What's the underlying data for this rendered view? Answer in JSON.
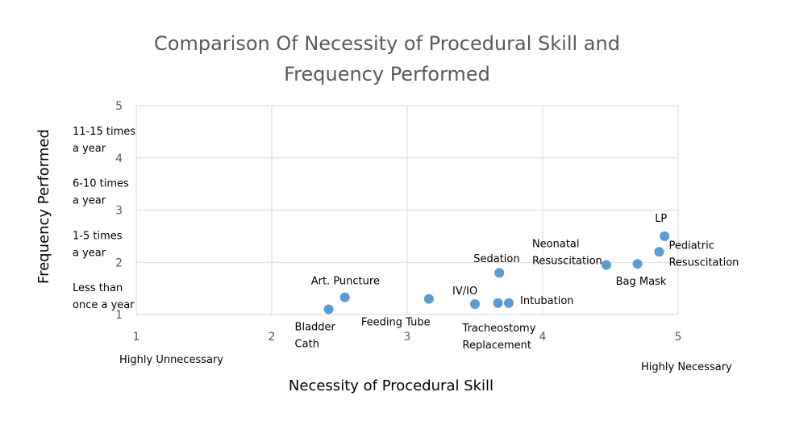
{
  "chart_data": {
    "type": "scatter",
    "title": [
      "Comparison Of Necessity of Procedural Skill and",
      "Frequency Performed"
    ],
    "xlabel": "Necessity of Procedural Skill",
    "ylabel": "Frequency Performed",
    "xlim": [
      1,
      5
    ],
    "ylim": [
      1,
      5
    ],
    "x_ticks": [
      1,
      2,
      3,
      4,
      5
    ],
    "y_ticks": [
      1,
      2,
      3,
      4,
      5
    ],
    "x_annotations": [
      {
        "text": "Highly Unnecessary",
        "at": 1
      },
      {
        "text": "Highly Necessary",
        "at": 5
      }
    ],
    "y_annotations": [
      {
        "lines": [
          "Less than",
          "once a year"
        ],
        "at": 1
      },
      {
        "lines": [
          "1-5 times",
          "a year"
        ],
        "at": 2
      },
      {
        "lines": [
          "6-10 times",
          "a year"
        ],
        "at": 3
      },
      {
        "lines": [
          "11-15 times",
          "a year"
        ],
        "at": 4
      }
    ],
    "grid": true,
    "color": "#5B9BD5",
    "points": [
      {
        "label": [
          "Bladder",
          "Cath"
        ],
        "x": 2.42,
        "y": 1.1
      },
      {
        "label": [
          "Art. Puncture"
        ],
        "x": 2.54,
        "y": 1.33
      },
      {
        "label": [
          "Feeding Tube"
        ],
        "x": 3.16,
        "y": 1.3
      },
      {
        "label": [
          "IV/IO"
        ],
        "x": 3.5,
        "y": 1.2
      },
      {
        "label": [
          "Tracheostomy",
          "Replacement"
        ],
        "x": 3.67,
        "y": 1.22
      },
      {
        "label": [
          "Intubation"
        ],
        "x": 3.75,
        "y": 1.22
      },
      {
        "label": [
          "Sedation"
        ],
        "x": 3.68,
        "y": 1.8
      },
      {
        "label": [
          "Neonatal",
          "Resuscitation"
        ],
        "x": 4.47,
        "y": 1.95
      },
      {
        "label": [
          "Bag Mask"
        ],
        "x": 4.7,
        "y": 1.97
      },
      {
        "label": [
          "Pediatric",
          "Resuscitation"
        ],
        "x": 4.86,
        "y": 2.2
      },
      {
        "label": [
          "LP"
        ],
        "x": 4.9,
        "y": 2.5
      }
    ]
  }
}
